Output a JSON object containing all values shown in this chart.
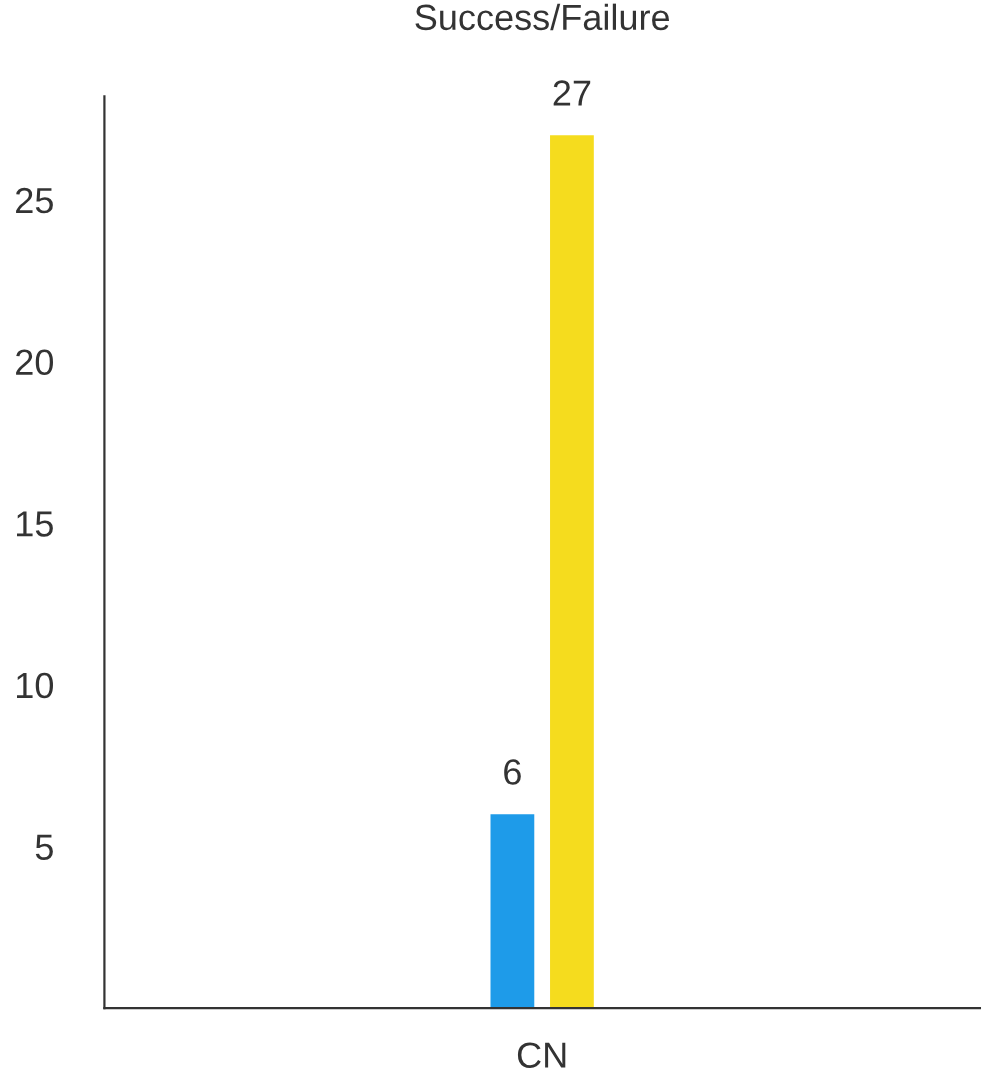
{
  "chart_data": {
    "type": "bar",
    "title": "Success/Failure",
    "categories": [
      "CN"
    ],
    "series": [
      {
        "color": "#1e9be9",
        "values": [
          6
        ]
      },
      {
        "color": "#f5dc1e",
        "values": [
          27
        ]
      }
    ],
    "ylim": [
      0,
      28.2
    ],
    "yticks": [
      5,
      10,
      15,
      20,
      25
    ],
    "grid": false,
    "legend": false,
    "data_labels": true
  }
}
